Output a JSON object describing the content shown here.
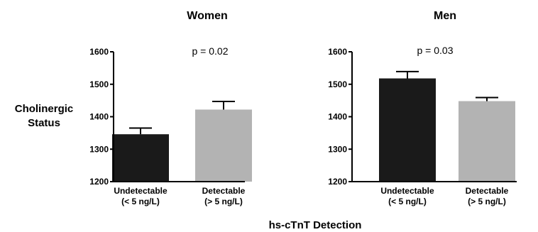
{
  "figure": {
    "ylabel": [
      "Cholinergic",
      "Status"
    ],
    "xlabel": "hs-cTnT Detection"
  },
  "chart_data": [
    {
      "type": "bar",
      "title": "Women",
      "annotation": "p = 0.02",
      "categories": [
        [
          "Undetectable",
          "(< 5 ng/L)"
        ],
        [
          "Detectable",
          "(> 5 ng/L)"
        ]
      ],
      "values": [
        1346,
        1422
      ],
      "errors": [
        19,
        25
      ],
      "colors": [
        "#1a1a1a",
        "#b3b3b3"
      ],
      "ylim": [
        1200,
        1600
      ],
      "yticks": [
        1200,
        1300,
        1400,
        1500,
        1600
      ],
      "grid": false
    },
    {
      "type": "bar",
      "title": "Men",
      "annotation": "p = 0.03",
      "categories": [
        [
          "Undetectable",
          "(< 5 ng/L)"
        ],
        [
          "Detectable",
          "(> 5 ng/L)"
        ]
      ],
      "values": [
        1518,
        1448
      ],
      "errors": [
        21,
        11
      ],
      "colors": [
        "#1a1a1a",
        "#b3b3b3"
      ],
      "ylim": [
        1200,
        1600
      ],
      "yticks": [
        1200,
        1300,
        1400,
        1500,
        1600
      ],
      "grid": false
    }
  ]
}
